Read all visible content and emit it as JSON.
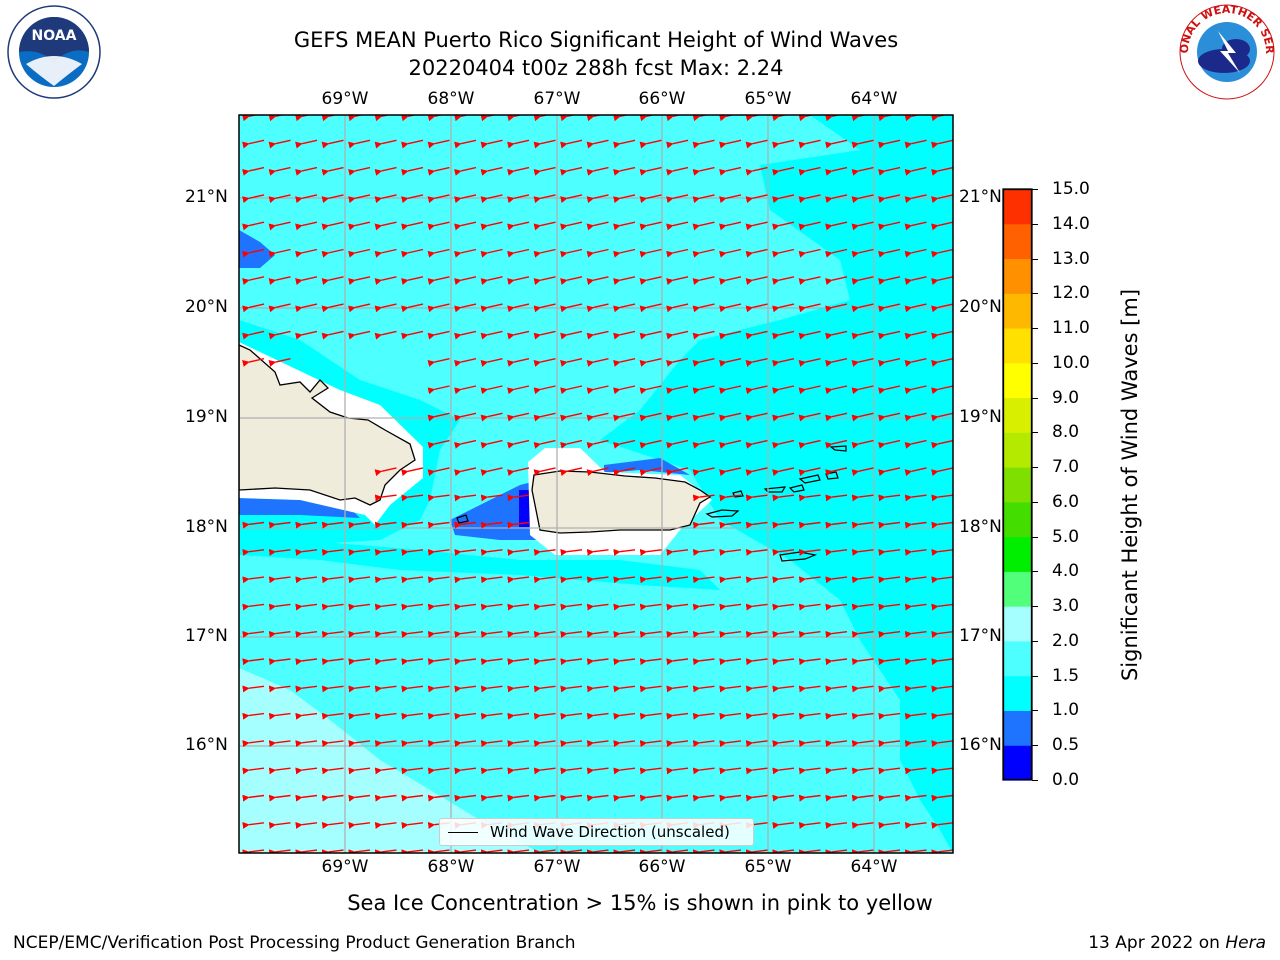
{
  "title": {
    "line1": "GEFS MEAN Puerto Rico Significant Height of Wind Waves",
    "line2": "20220404 t00z 288h fcst   Max: 2.24"
  },
  "map": {
    "lon_labels": [
      "69°W",
      "68°W",
      "67°W",
      "66°W",
      "65°W",
      "64°W"
    ],
    "lat_labels": [
      "21°N",
      "20°N",
      "19°N",
      "18°N",
      "17°N",
      "16°N"
    ],
    "legend_label": "Wind Wave Direction (unscaled)",
    "arrow_color": "#ff0000",
    "land_color": "#efecdc",
    "land_edge_color": "#000000"
  },
  "colorbar": {
    "label": "Significant Height of Wind Waves [m]",
    "ticks": [
      "15.0",
      "14.0",
      "13.0",
      "12.0",
      "11.0",
      "10.0",
      "9.0",
      "8.0",
      "7.0",
      "6.0",
      "5.0",
      "4.0",
      "3.0",
      "2.0",
      "1.5",
      "1.0",
      "0.5",
      "0.0"
    ],
    "colors": [
      "#0000ff",
      "#1e74ff",
      "#00ffff",
      "#4dffff",
      "#a6ffff",
      "#52ff7a",
      "#00ee00",
      "#44dd00",
      "#7fdf00",
      "#b4ea00",
      "#d8f000",
      "#ffff00",
      "#ffe000",
      "#ffb800",
      "#ff9000",
      "#ff6000",
      "#ff3000",
      "#ff0000"
    ]
  },
  "caption": "Sea Ice Concentration > 15% is shown in pink to yellow",
  "footer": {
    "left": "NCEP/EMC/Verification Post Processing Product Generation Branch",
    "right_prefix": "13 Apr 2022 on ",
    "right_machine": "Hera"
  },
  "logos": {
    "noaa_text": "NOAA",
    "nws_text": "NATIONAL WEATHER SERVICE"
  }
}
